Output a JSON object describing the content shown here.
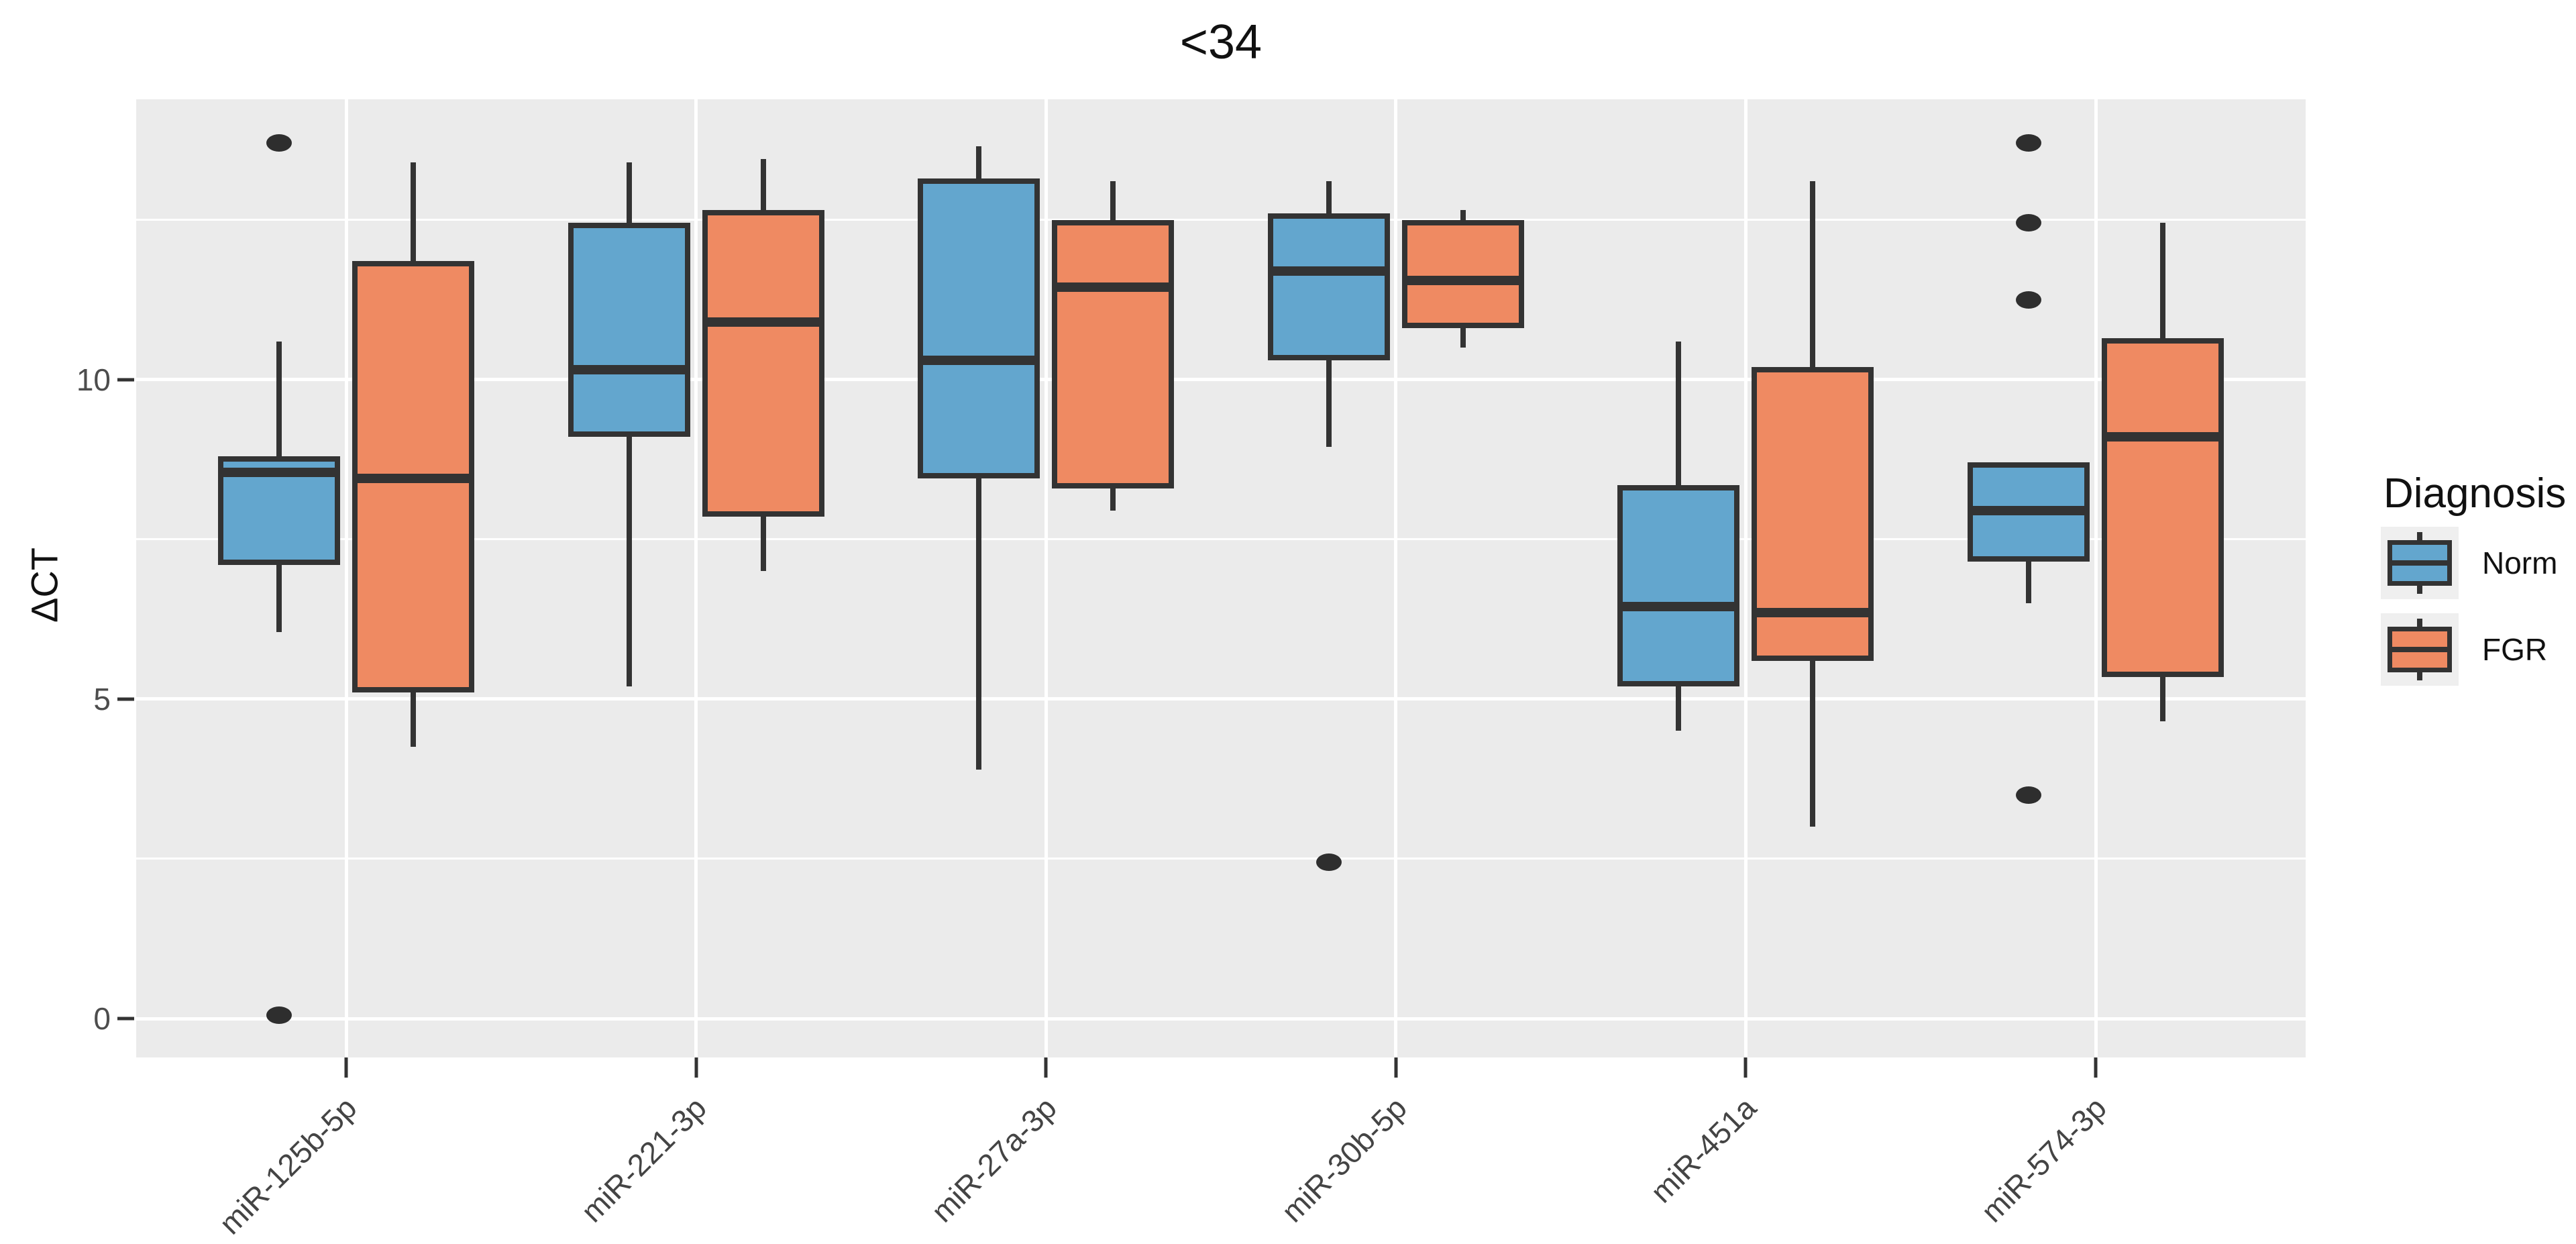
{
  "chart": {
    "title": "<34",
    "ylabel": "ΔCT"
  },
  "legend": {
    "title": "Diagnosis",
    "items": [
      {
        "label": "Norm",
        "color": "#63A6CE"
      },
      {
        "label": "FGR",
        "color": "#EF8A62"
      }
    ]
  },
  "colors": {
    "norm_fill": "#63A6CE",
    "fgr_fill": "#EF8A62",
    "box_stroke": "#333333",
    "outlier": "#2E2E2E",
    "panel_background": "#EBEBEB",
    "gridline": "#FFFFFF",
    "tick_text": "#4D4D4D",
    "title_text": "#111111"
  },
  "chart_data": {
    "type": "grouped_boxplot",
    "title": "<34",
    "xlabel": "",
    "ylabel": "ΔCT",
    "categories": [
      "miR-125b-5p",
      "miR-221-3p",
      "miR-27a-3p",
      "miR-30b-5p",
      "miR-451a",
      "miR-574-3p"
    ],
    "y_ticks": [
      0,
      5,
      10
    ],
    "y_minor_ticks": [
      2.5,
      7.5,
      12.5
    ],
    "ylim": [
      -0.6,
      14.4
    ],
    "grid": "major-and-minor-horizontal, major-vertical-at-group-centers",
    "legend_position": "right",
    "series": [
      {
        "name": "Norm",
        "color": "#63A6CE",
        "boxes": [
          {
            "category": "miR-125b-5p",
            "low": 6.05,
            "q1": 7.1,
            "median": 8.55,
            "q3": 8.8,
            "high": 10.6,
            "outliers": [
              13.7,
              0.05
            ]
          },
          {
            "category": "miR-221-3p",
            "low": 5.2,
            "q1": 9.1,
            "median": 10.15,
            "q3": 12.45,
            "high": 13.4,
            "outliers": []
          },
          {
            "category": "miR-27a-3p",
            "low": 3.9,
            "q1": 8.45,
            "median": 10.3,
            "q3": 13.15,
            "high": 13.65,
            "outliers": []
          },
          {
            "category": "miR-30b-5p",
            "low": 8.95,
            "q1": 10.3,
            "median": 11.7,
            "q3": 12.6,
            "high": 13.1,
            "outliers": [
              2.45
            ]
          },
          {
            "category": "miR-451a",
            "low": 4.5,
            "q1": 5.2,
            "median": 6.45,
            "q3": 8.35,
            "high": 10.6,
            "outliers": []
          },
          {
            "category": "miR-574-3p",
            "low": 6.5,
            "q1": 7.15,
            "median": 7.95,
            "q3": 8.7,
            "high": 8.7,
            "outliers": [
              13.7,
              12.45,
              11.25,
              3.5
            ]
          }
        ]
      },
      {
        "name": "FGR",
        "color": "#EF8A62",
        "boxes": [
          {
            "category": "miR-125b-5p",
            "low": 4.25,
            "q1": 5.1,
            "median": 8.45,
            "q3": 11.85,
            "high": 13.4,
            "outliers": []
          },
          {
            "category": "miR-221-3p",
            "low": 7.0,
            "q1": 7.85,
            "median": 10.9,
            "q3": 12.65,
            "high": 13.45,
            "outliers": []
          },
          {
            "category": "miR-27a-3p",
            "low": 7.95,
            "q1": 8.3,
            "median": 11.45,
            "q3": 12.5,
            "high": 13.1,
            "outliers": []
          },
          {
            "category": "miR-30b-5p",
            "low": 10.5,
            "q1": 10.8,
            "median": 11.55,
            "q3": 12.5,
            "high": 12.65,
            "outliers": []
          },
          {
            "category": "miR-451a",
            "low": 3.0,
            "q1": 5.6,
            "median": 6.35,
            "q3": 10.2,
            "high": 13.1,
            "outliers": []
          },
          {
            "category": "miR-574-3p",
            "low": 4.65,
            "q1": 5.35,
            "median": 9.1,
            "q3": 10.65,
            "high": 12.45,
            "outliers": []
          }
        ]
      }
    ]
  }
}
